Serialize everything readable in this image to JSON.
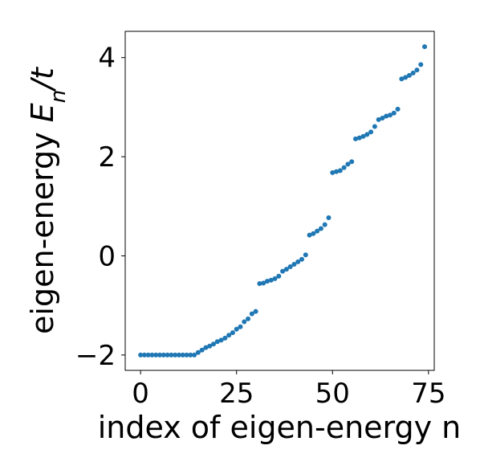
{
  "chart_data": {
    "type": "scatter",
    "title": "",
    "xlabel": "index of eigen-energy n",
    "ylabel": {
      "prefix": "eigen-energy ",
      "var": "E",
      "sub": "n",
      "suffix": "/t"
    },
    "xlim": [
      -4,
      76.5
    ],
    "ylim": [
      -2.31,
      4.53
    ],
    "xticks": [
      0,
      25,
      50,
      75
    ],
    "xtick_labels": [
      "0",
      "25",
      "50",
      "75"
    ],
    "yticks": [
      -2,
      0,
      2,
      4
    ],
    "ytick_labels": [
      "−2",
      "0",
      "2",
      "4"
    ],
    "grid": false,
    "legend": "none",
    "marker_color": "#1f77b4",
    "series": [
      {
        "x": [
          0,
          1,
          2,
          3,
          4,
          5,
          6,
          7,
          8,
          9,
          10,
          11,
          12,
          13,
          14,
          15,
          16,
          17,
          18,
          19,
          20,
          21,
          22,
          23,
          24,
          25,
          26,
          27,
          28,
          29,
          30,
          31,
          32,
          33,
          34,
          35,
          36,
          37,
          38,
          39,
          40,
          41,
          42,
          43,
          44,
          45,
          46,
          47,
          48,
          49,
          50,
          51,
          52,
          53,
          54,
          55,
          56,
          57,
          58,
          59,
          60,
          61,
          62,
          63,
          64,
          65,
          66,
          67,
          68,
          69,
          70,
          71,
          72,
          73,
          74
        ],
        "y": [
          -2.0,
          -2.0,
          -2.0,
          -2.0,
          -2.0,
          -2.0,
          -2.0,
          -2.0,
          -2.0,
          -2.0,
          -2.0,
          -2.0,
          -2.0,
          -2.0,
          -2.0,
          -1.95,
          -1.9,
          -1.85,
          -1.82,
          -1.78,
          -1.73,
          -1.7,
          -1.66,
          -1.6,
          -1.55,
          -1.48,
          -1.43,
          -1.33,
          -1.27,
          -1.17,
          -1.12,
          -0.56,
          -0.55,
          -0.51,
          -0.49,
          -0.46,
          -0.41,
          -0.31,
          -0.27,
          -0.22,
          -0.17,
          -0.12,
          -0.07,
          0.02,
          0.42,
          0.45,
          0.5,
          0.55,
          0.63,
          0.77,
          1.68,
          1.7,
          1.72,
          1.78,
          1.85,
          1.9,
          2.36,
          2.38,
          2.41,
          2.45,
          2.5,
          2.61,
          2.75,
          2.78,
          2.82,
          2.84,
          2.88,
          2.96,
          3.57,
          3.6,
          3.64,
          3.69,
          3.75,
          3.86,
          4.22
        ]
      }
    ]
  }
}
